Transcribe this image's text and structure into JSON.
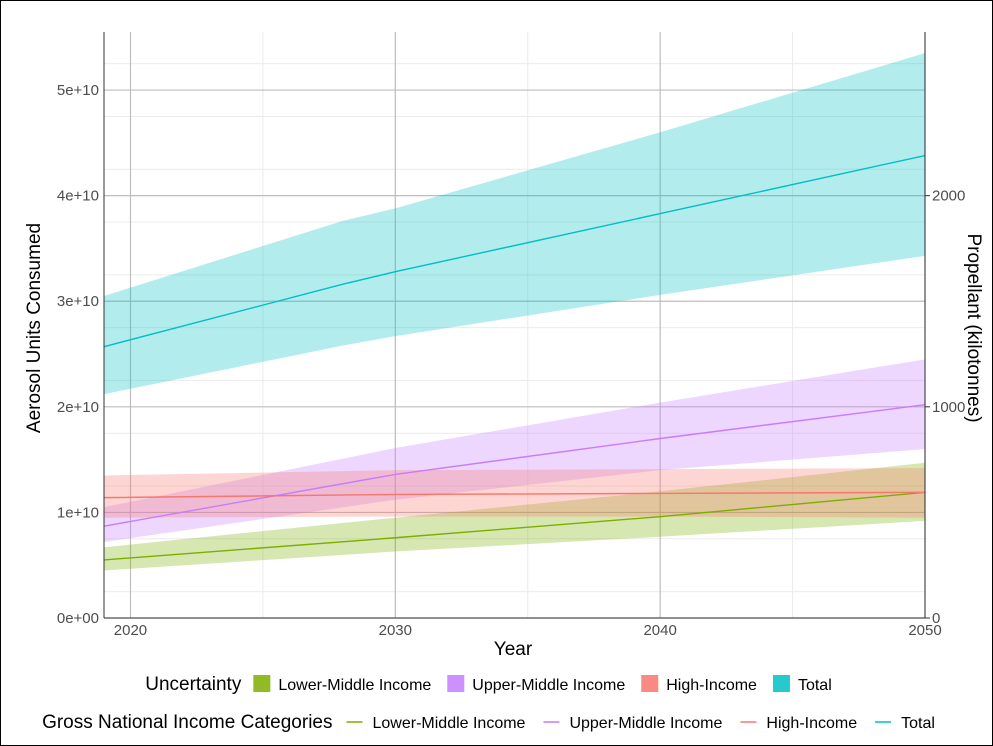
{
  "chart_data": {
    "type": "line",
    "xlabel": "Year",
    "ylabel": "Aerosol Units Consumed",
    "y2label": "Propellant (kilotonnes)",
    "xlim": [
      2019,
      2050
    ],
    "ylim": [
      0,
      55500000000
    ],
    "y2lim": [
      0,
      2775
    ],
    "x_ticks": [
      {
        "value": 2020,
        "label": "2020"
      },
      {
        "value": 2030,
        "label": "2030"
      },
      {
        "value": 2040,
        "label": "2040"
      },
      {
        "value": 2050,
        "label": "2050"
      }
    ],
    "y_ticks": [
      {
        "value": 0,
        "label": "0e+00"
      },
      {
        "value": 10000000000,
        "label": "1e+10"
      },
      {
        "value": 20000000000,
        "label": "2e+10"
      },
      {
        "value": 30000000000,
        "label": "3e+10"
      },
      {
        "value": 40000000000,
        "label": "4e+10"
      },
      {
        "value": 50000000000,
        "label": "5e+10"
      }
    ],
    "y2_ticks": [
      {
        "value": 0,
        "label": "0"
      },
      {
        "value": 1000,
        "label": "1000"
      },
      {
        "value": 2000,
        "label": "2000"
      }
    ],
    "grid": true,
    "legend_position": "bottom",
    "legends": [
      {
        "title": "Uncertainty",
        "kind": "fill",
        "keys": [
          0,
          1,
          2,
          3
        ]
      },
      {
        "title": "Gross National Income Categories",
        "kind": "line",
        "keys": [
          0,
          1,
          2,
          3
        ]
      }
    ],
    "series": [
      {
        "name": "Lower-Middle Income",
        "color": "#7CAE00",
        "x": [
          2019,
          2030,
          2040,
          2050
        ],
        "y": [
          5500000000,
          7600000000,
          9600000000,
          11900000000
        ],
        "lower": [
          4500000000,
          6300000000,
          7700000000,
          9200000000
        ],
        "upper": [
          6700000000,
          9500000000,
          12000000000,
          14700000000
        ]
      },
      {
        "name": "Upper-Middle Income",
        "color": "#C77CFF",
        "x": [
          2019,
          2030,
          2040,
          2050
        ],
        "y": [
          8700000000,
          13600000000,
          17000000000,
          20200000000
        ],
        "lower": [
          7200000000,
          11200000000,
          14000000000,
          16000000000
        ],
        "upper": [
          10500000000,
          16100000000,
          20400000000,
          24500000000
        ]
      },
      {
        "name": "High-Income",
        "color": "#F8766D",
        "x": [
          2019,
          2030,
          2040,
          2050
        ],
        "y": [
          11400000000,
          11700000000,
          11800000000,
          11900000000
        ],
        "lower": [
          9500000000,
          9600000000,
          9600000000,
          9500000000
        ],
        "upper": [
          13500000000,
          14000000000,
          14100000000,
          14200000000
        ]
      },
      {
        "name": "Total",
        "color": "#00BFC4",
        "x": [
          2019,
          2028,
          2030,
          2040,
          2050
        ],
        "y": [
          25700000000,
          31600000000,
          32800000000,
          38300000000,
          43800000000
        ],
        "lower": [
          21200000000,
          25800000000,
          26700000000,
          30600000000,
          34300000000
        ],
        "upper": [
          30500000000,
          37600000000,
          38800000000,
          46000000000,
          53500000000
        ]
      }
    ]
  }
}
